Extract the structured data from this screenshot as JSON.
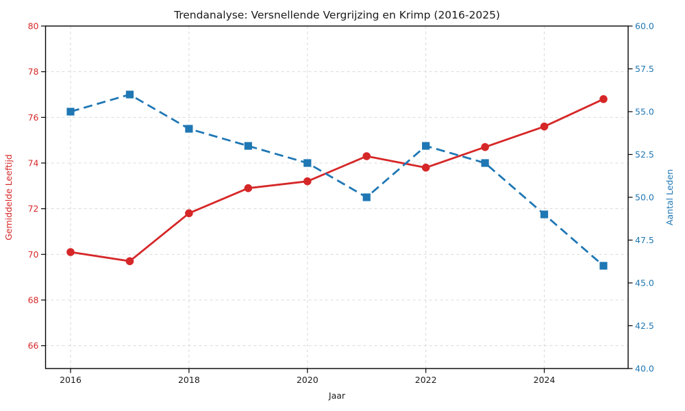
{
  "chart_data": {
    "type": "line",
    "title": "Trendanalyse: Versnellende Vergrijzing en Krimp (2016-2025)",
    "xlabel": "Jaar",
    "x": [
      2016,
      2017,
      2018,
      2019,
      2020,
      2021,
      2022,
      2023,
      2024,
      2025
    ],
    "x_tick_labels": [
      2016,
      2018,
      2020,
      2022,
      2024
    ],
    "grid": true,
    "legend_position": "none",
    "background_color": "#ffffff",
    "gridline_color": "#d9d9d9",
    "spine_color": "#000000",
    "left_axis": {
      "label": "Gemiddelde Leeftijd",
      "color": "#d62728",
      "ylim": [
        65,
        80
      ],
      "ticks": [
        66,
        68,
        70,
        72,
        74,
        76,
        78,
        80
      ]
    },
    "right_axis": {
      "label": "Aantal Leden",
      "color": "#1f77b4",
      "ylim": [
        40,
        60
      ],
      "tick_labels": [
        "40.0",
        "42.5",
        "45.0",
        "47.5",
        "50.0",
        "52.5",
        "55.0",
        "57.5",
        "60.0"
      ]
    },
    "series": [
      {
        "name": "Gemiddelde Leeftijd",
        "axis": "left",
        "color": "#d62728",
        "line_style": "solid",
        "marker": "circle",
        "values": [
          70.1,
          69.7,
          71.8,
          72.9,
          73.2,
          74.3,
          73.8,
          74.7,
          75.6,
          76.8
        ]
      },
      {
        "name": "Aantal Leden",
        "axis": "right",
        "color": "#1f77b4",
        "line_style": "dashed",
        "marker": "square",
        "values": [
          55,
          56,
          54,
          53,
          52,
          50,
          53,
          52,
          49,
          46
        ]
      }
    ]
  }
}
